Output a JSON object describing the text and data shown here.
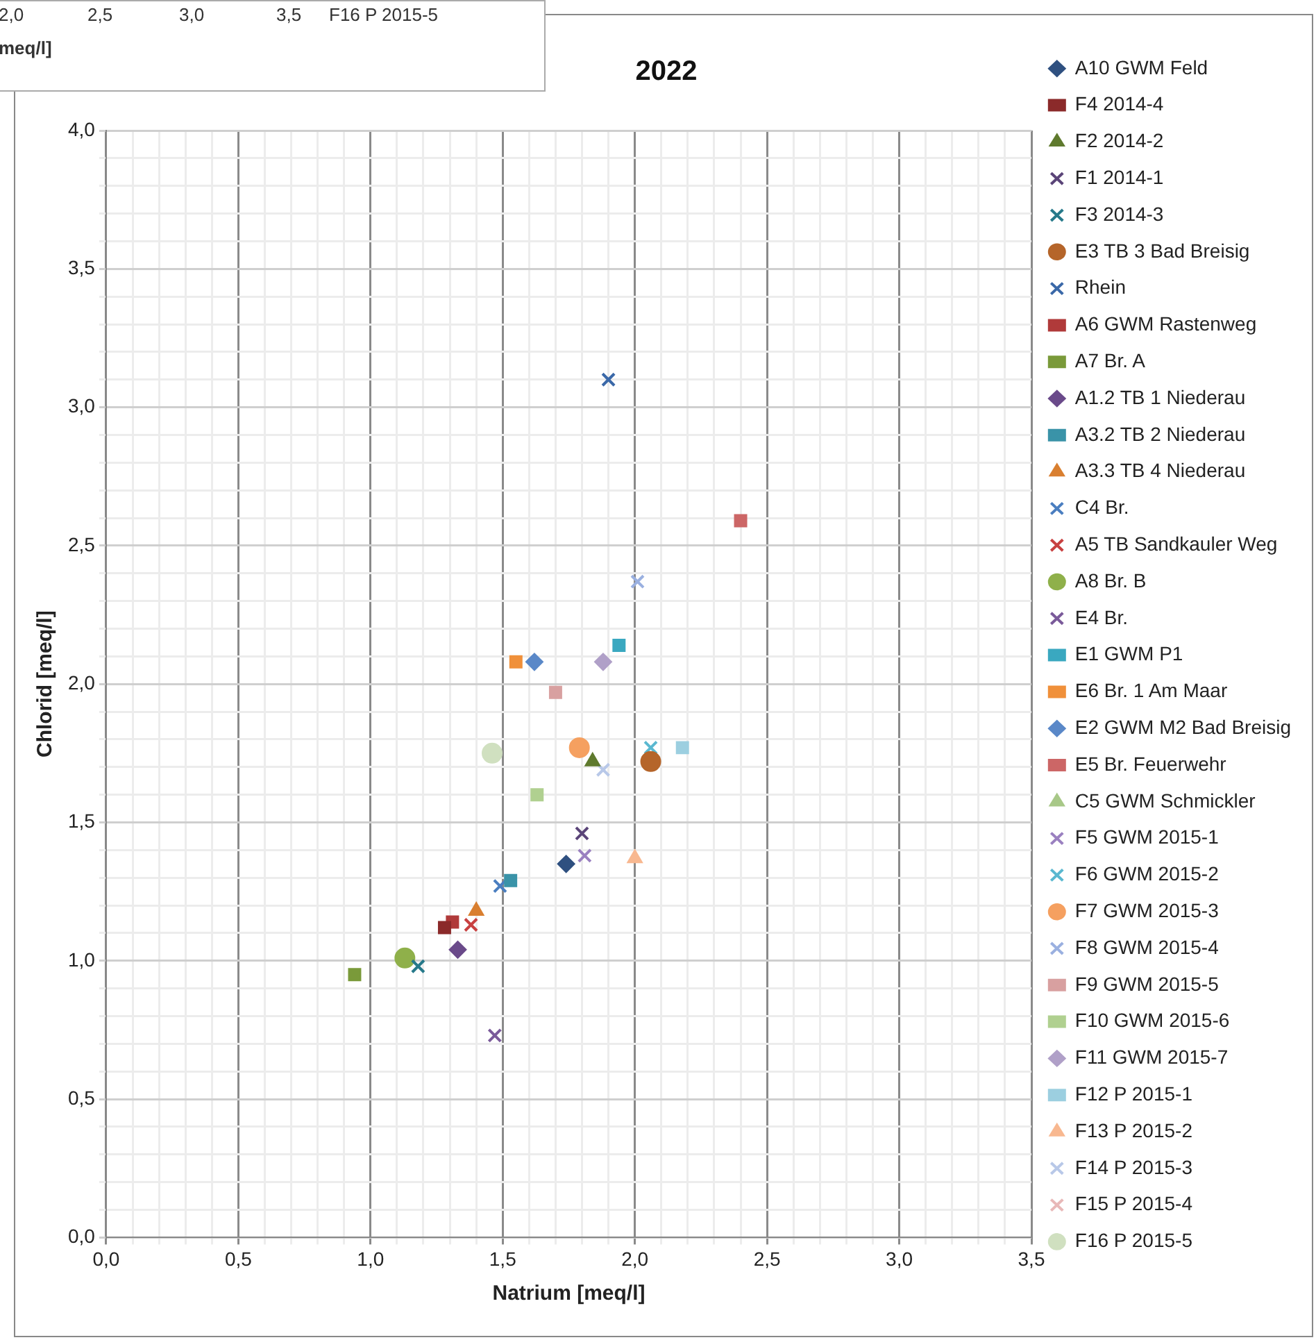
{
  "chart_data": {
    "type": "scatter",
    "title": "2022",
    "xlabel": "Natrium [meq/l]",
    "ylabel": "Chlorid [meq/l]",
    "grid": true,
    "legend": "right",
    "annotations": [
      "2,0",
      "2,5",
      "3,0",
      "3,5",
      "F16 P 2015-5",
      "meq/l]"
    ],
    "xlim": [
      0,
      3.5
    ],
    "ylim": [
      0,
      4
    ],
    "xticks": [
      {
        "value": 0,
        "label": "0,0"
      },
      {
        "value": 0.1,
        "label": null
      },
      {
        "value": 0.2,
        "label": null
      },
      {
        "value": 0.3,
        "label": null
      },
      {
        "value": 0.4,
        "label": null
      },
      {
        "value": 0.5,
        "label": "0,5"
      },
      {
        "value": 0.6,
        "label": null
      },
      {
        "value": 0.7,
        "label": null
      },
      {
        "value": 0.8,
        "label": null
      },
      {
        "value": 0.9,
        "label": null
      },
      {
        "value": 1,
        "label": "1,0"
      },
      {
        "value": 1.1,
        "label": null
      },
      {
        "value": 1.2,
        "label": null
      },
      {
        "value": 1.3,
        "label": null
      },
      {
        "value": 1.4,
        "label": null
      },
      {
        "value": 1.5,
        "label": "1,5"
      },
      {
        "value": 1.6,
        "label": null
      },
      {
        "value": 1.7,
        "label": null
      },
      {
        "value": 1.8,
        "label": null
      },
      {
        "value": 1.9,
        "label": null
      },
      {
        "value": 2,
        "label": "2,0"
      },
      {
        "value": 2.1,
        "label": null
      },
      {
        "value": 2.2,
        "label": null
      },
      {
        "value": 2.3,
        "label": null
      },
      {
        "value": 2.4,
        "label": null
      },
      {
        "value": 2.5,
        "label": "2,5"
      },
      {
        "value": 2.6,
        "label": null
      },
      {
        "value": 2.7,
        "label": null
      },
      {
        "value": 2.8,
        "label": null
      },
      {
        "value": 2.9,
        "label": null
      },
      {
        "value": 3,
        "label": "3,0"
      },
      {
        "value": 3.1,
        "label": null
      },
      {
        "value": 3.2,
        "label": null
      },
      {
        "value": 3.3,
        "label": null
      },
      {
        "value": 3.4,
        "label": null
      },
      {
        "value": 3.5,
        "label": "3,5"
      }
    ],
    "yticks": [
      {
        "value": 0,
        "label": "0,0"
      },
      {
        "value": 0.1,
        "label": null
      },
      {
        "value": 0.2,
        "label": null
      },
      {
        "value": 0.3,
        "label": null
      },
      {
        "value": 0.4,
        "label": null
      },
      {
        "value": 0.5,
        "label": "0,5"
      },
      {
        "value": 0.6,
        "label": null
      },
      {
        "value": 0.7,
        "label": null
      },
      {
        "value": 0.8,
        "label": null
      },
      {
        "value": 0.9,
        "label": null
      },
      {
        "value": 1,
        "label": "1,0"
      },
      {
        "value": 1.1,
        "label": null
      },
      {
        "value": 1.2,
        "label": null
      },
      {
        "value": 1.3,
        "label": null
      },
      {
        "value": 1.4,
        "label": null
      },
      {
        "value": 1.5,
        "label": "1,5"
      },
      {
        "value": 1.6,
        "label": null
      },
      {
        "value": 1.7,
        "label": null
      },
      {
        "value": 1.8,
        "label": null
      },
      {
        "value": 1.9,
        "label": null
      },
      {
        "value": 2,
        "label": "2,0"
      },
      {
        "value": 2.1,
        "label": null
      },
      {
        "value": 2.2,
        "label": null
      },
      {
        "value": 2.3,
        "label": null
      },
      {
        "value": 2.4,
        "label": null
      },
      {
        "value": 2.5,
        "label": "2,5"
      },
      {
        "value": 2.6,
        "label": null
      },
      {
        "value": 2.7,
        "label": null
      },
      {
        "value": 2.8,
        "label": null
      },
      {
        "value": 2.9,
        "label": null
      },
      {
        "value": 3,
        "label": "3,0"
      },
      {
        "value": 3.1,
        "label": null
      },
      {
        "value": 3.2,
        "label": null
      },
      {
        "value": 3.3,
        "label": null
      },
      {
        "value": 3.4,
        "label": null
      },
      {
        "value": 3.5,
        "label": "3,5"
      },
      {
        "value": 3.6,
        "label": null
      },
      {
        "value": 3.7,
        "label": null
      },
      {
        "value": 3.8,
        "label": null
      },
      {
        "value": 3.9,
        "label": null
      },
      {
        "value": 4,
        "label": "4,0"
      }
    ],
    "series": [
      {
        "name": "A10 GWM Feld",
        "color": "#2f5080",
        "marker": "diamond",
        "x": [
          1.74
        ],
        "values": [
          1.35
        ]
      },
      {
        "name": "F4 2014-4",
        "color": "#8b2a2a",
        "marker": "square",
        "x": [
          1.28
        ],
        "values": [
          1.12
        ]
      },
      {
        "name": "F2 2014-2",
        "color": "#5f7a2e",
        "marker": "triangle",
        "x": [
          1.84
        ],
        "values": [
          1.72
        ]
      },
      {
        "name": "F1 2014-1",
        "color": "#5a4478",
        "marker": "cross",
        "x": [
          1.8
        ],
        "values": [
          1.46
        ]
      },
      {
        "name": "F3 2014-3",
        "color": "#26798a",
        "marker": "cross",
        "x": [
          1.18
        ],
        "values": [
          0.98
        ]
      },
      {
        "name": "E3 TB 3 Bad Breisig",
        "color": "#b5652a",
        "marker": "circle",
        "x": [
          2.06
        ],
        "values": [
          1.72
        ]
      },
      {
        "name": "Rhein",
        "color": "#3a68a8",
        "marker": "cross",
        "x": [
          1.9
        ],
        "values": [
          3.1
        ]
      },
      {
        "name": "A6 GWM Rastenweg",
        "color": "#b03a3a",
        "marker": "square",
        "x": [
          1.31
        ],
        "values": [
          1.14
        ]
      },
      {
        "name": "A7 Br. A",
        "color": "#7a9a3a",
        "marker": "square",
        "x": [
          0.94
        ],
        "values": [
          0.95
        ]
      },
      {
        "name": "A1.2 TB 1 Niederau",
        "color": "#6a4a8a",
        "marker": "diamond",
        "x": [
          1.33
        ],
        "values": [
          1.04
        ]
      },
      {
        "name": "A3.2 TB 2 Niederau",
        "color": "#3a93a8",
        "marker": "square",
        "x": [
          1.53
        ],
        "values": [
          1.29
        ]
      },
      {
        "name": "A3.3 TB 4 Niederau",
        "color": "#d97f30",
        "marker": "triangle",
        "x": [
          1.4
        ],
        "values": [
          1.18
        ]
      },
      {
        "name": "C4 Br.",
        "color": "#4a7ec0",
        "marker": "cross",
        "x": [
          1.49
        ],
        "values": [
          1.27
        ]
      },
      {
        "name": "A5 TB Sandkauler Weg",
        "color": "#c84040",
        "marker": "cross",
        "x": [
          1.38
        ],
        "values": [
          1.13
        ]
      },
      {
        "name": "A8 Br. B",
        "color": "#8fb04a",
        "marker": "circle",
        "x": [
          1.13
        ],
        "values": [
          1.01
        ]
      },
      {
        "name": "E4 Br.",
        "color": "#7a5a9a",
        "marker": "cross",
        "x": [
          1.47
        ],
        "values": [
          0.73
        ]
      },
      {
        "name": "E1 GWM P1",
        "color": "#3aa8c0",
        "marker": "square",
        "x": [
          1.94
        ],
        "values": [
          2.14
        ]
      },
      {
        "name": "E6 Br. 1 Am Maar",
        "color": "#f0903a",
        "marker": "square",
        "x": [
          1.55
        ],
        "values": [
          2.08
        ]
      },
      {
        "name": "E2 GWM M2 Bad Breisig",
        "color": "#5a88c8",
        "marker": "diamond",
        "x": [
          1.62
        ],
        "values": [
          2.08
        ]
      },
      {
        "name": "E5 Br. Feuerwehr",
        "color": "#cc6666",
        "marker": "square",
        "x": [
          2.4
        ],
        "values": [
          2.59
        ]
      },
      {
        "name": "C5 GWM Schmickler",
        "color": "#a8c888",
        "marker": "triangle",
        "x": [
          null
        ],
        "values": [
          null
        ]
      },
      {
        "name": "F5 GWM 2015-1",
        "color": "#9a80c0",
        "marker": "cross",
        "x": [
          1.81
        ],
        "values": [
          1.38
        ]
      },
      {
        "name": "F6 GWM 2015-2",
        "color": "#5ab8d0",
        "marker": "cross",
        "x": [
          2.06
        ],
        "values": [
          1.77
        ]
      },
      {
        "name": "F7 GWM 2015-3",
        "color": "#f5a060",
        "marker": "circle",
        "x": [
          1.79
        ],
        "values": [
          1.77
        ]
      },
      {
        "name": "F8 GWM 2015-4",
        "color": "#9ab0e0",
        "marker": "cross",
        "x": [
          2.01
        ],
        "values": [
          2.37
        ]
      },
      {
        "name": "F9 GWM 2015-5",
        "color": "#d8a0a0",
        "marker": "square",
        "x": [
          1.7
        ],
        "values": [
          1.97
        ]
      },
      {
        "name": "F10 GWM 2015-6",
        "color": "#b0d090",
        "marker": "square",
        "x": [
          1.63
        ],
        "values": [
          1.6
        ]
      },
      {
        "name": "F11 GWM 2015-7",
        "color": "#b0a0c8",
        "marker": "diamond",
        "x": [
          1.88
        ],
        "values": [
          2.08
        ]
      },
      {
        "name": "F12 P 2015-1",
        "color": "#9ccfe0",
        "marker": "square",
        "x": [
          2.18
        ],
        "values": [
          1.77
        ]
      },
      {
        "name": "F13 P 2015-2",
        "color": "#f8b890",
        "marker": "triangle",
        "x": [
          2.0
        ],
        "values": [
          1.37
        ]
      },
      {
        "name": "F14 P 2015-3",
        "color": "#b8c8e8",
        "marker": "cross",
        "x": [
          1.88
        ],
        "values": [
          1.69
        ]
      },
      {
        "name": "F15 P 2015-4",
        "color": "#e8b8b8",
        "marker": "cross",
        "x": [
          null
        ],
        "values": [
          null
        ]
      },
      {
        "name": "F16 P 2015-5",
        "color": "#d0e0c0",
        "marker": "circle",
        "x": [
          1.46
        ],
        "values": [
          1.75
        ]
      }
    ]
  }
}
